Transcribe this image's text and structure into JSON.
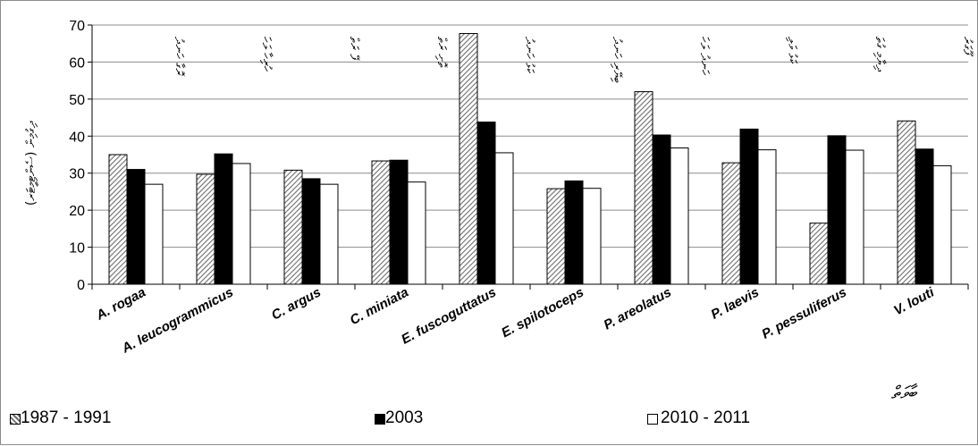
{
  "chart_data": {
    "type": "bar",
    "ylim": [
      0,
      70
    ],
    "yticks": [
      "0",
      "10",
      "20",
      "30",
      "40",
      "50",
      "60",
      "70"
    ],
    "grid": true,
    "legend_position": "bottom",
    "categories": [
      "A. rogaa",
      "A. leucogrammicus",
      "C. argus",
      "C. miniata",
      "E. fuscoguttatus",
      "E. spilotoceps",
      "P. areolatus",
      "P. laevis",
      "P. pessuliferus",
      "V. louti"
    ],
    "series": [
      {
        "name": "1987 - 1991",
        "values": [
          35,
          29.7,
          30.8,
          33.3,
          67.7,
          25.8,
          52,
          32.8,
          16.5,
          44.1
        ]
      },
      {
        "name": "2003",
        "values": [
          31,
          35.2,
          28.5,
          33.5,
          43.8,
          27.9,
          40.3,
          41.9,
          40.1,
          36.5
        ]
      },
      {
        "name": "2010 - 2011",
        "values": [
          27,
          32.6,
          27,
          27.6,
          35.5,
          25.9,
          36.8,
          36.3,
          36.2,
          32
        ]
      }
    ],
    "series_colors": [
      "#bdbdbd",
      "#000000",
      "#ffffff"
    ],
    "ylabel": "(ސެންޓިމީޓަރ) ދިގުމިން",
    "xlabel": "ބާވަތް",
    "annotations": [
      "ރޮގާ ހަނދު",
      "ހުރިހާ ލަހަ",
      "ފޭ ރަތް",
      "ތޮށި ރަތް",
      "ކަޅު ހަނދު",
      "ބިޔޭރި ހަނދު",
      "ހަނދު ލަހަ",
      "ކަޅު ވަލި",
      "ދިޔާމި ގުތަ",
      "ފޫގަރު"
    ]
  }
}
